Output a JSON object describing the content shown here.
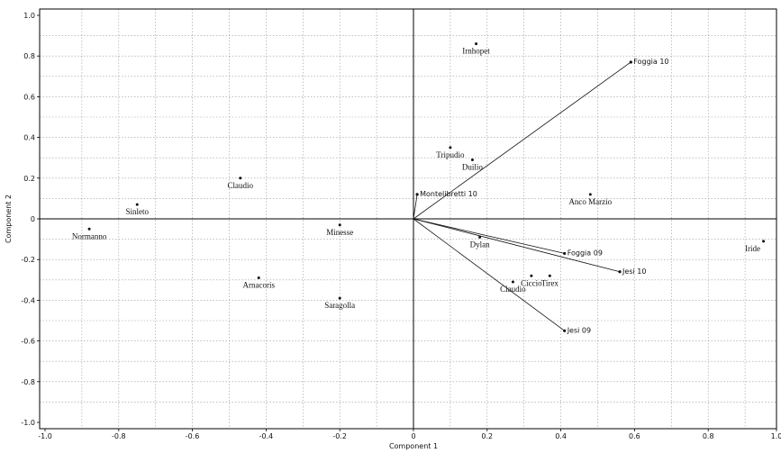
{
  "chart_data": {
    "type": "scatter",
    "title": "",
    "xlabel": "Component 1",
    "ylabel": "Component 2",
    "xlim": [
      -1.0,
      1.0
    ],
    "ylim": [
      -1.0,
      1.0
    ],
    "xticks": [
      "-1.0",
      "-0.8",
      "-0.6",
      "-0.4",
      "-0.2",
      "0",
      "0.2",
      "0.4",
      "0.6",
      "0.8",
      "1.0"
    ],
    "yticks": [
      "-1.0",
      "-0.8",
      "-0.6",
      "-0.4",
      "-0.2",
      "0",
      "0.2",
      "0.4",
      "0.6",
      "0.8",
      "1.0"
    ],
    "grid": true,
    "points": [
      {
        "label": "Irnhopet",
        "x": 0.17,
        "y": 0.86
      },
      {
        "label": "Tripudio",
        "x": 0.1,
        "y": 0.35
      },
      {
        "label": "Duilio",
        "x": 0.16,
        "y": 0.29
      },
      {
        "label": "Claudio",
        "x": -0.47,
        "y": 0.2
      },
      {
        "label": "Sinleto",
        "x": -0.75,
        "y": 0.07
      },
      {
        "label": "Normanno",
        "x": -0.88,
        "y": -0.05
      },
      {
        "label": "Minesse",
        "x": -0.2,
        "y": -0.03
      },
      {
        "label": "Anco Marzio",
        "x": 0.48,
        "y": 0.12
      },
      {
        "label": "Dylan",
        "x": 0.18,
        "y": -0.09
      },
      {
        "label": "Iride",
        "x": 0.95,
        "y": -0.11
      },
      {
        "label": "Arnacoris",
        "x": -0.42,
        "y": -0.29
      },
      {
        "label": "Saragolla",
        "x": -0.2,
        "y": -0.39
      },
      {
        "label": "Claudio",
        "x": 0.27,
        "y": -0.31
      },
      {
        "label": "Ciccio",
        "x": 0.32,
        "y": -0.28
      },
      {
        "label": "Tirex",
        "x": 0.37,
        "y": -0.28
      }
    ],
    "vectors": [
      {
        "label": "Foggia 10",
        "x": 0.59,
        "y": 0.77
      },
      {
        "label": "Montelibretti 10",
        "x": 0.01,
        "y": 0.12
      },
      {
        "label": "Foggia 09",
        "x": 0.41,
        "y": -0.17
      },
      {
        "label": "Jesi 10",
        "x": 0.56,
        "y": -0.26
      },
      {
        "label": "Jesi 09",
        "x": 0.41,
        "y": -0.55
      }
    ]
  }
}
